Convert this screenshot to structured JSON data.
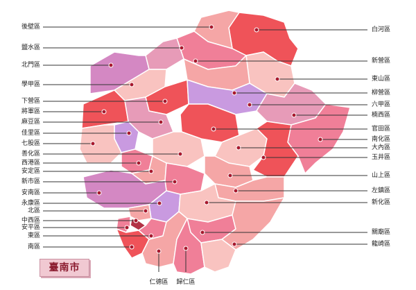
{
  "title": "臺南市",
  "colors": {
    "pale": "#f9c3c0",
    "light": "#f5a6a6",
    "pink": "#f07f98",
    "red": "#ef5359",
    "purple": "#c99ae0",
    "lavender": "#d488c3",
    "mauve": "#e79bb8",
    "dark": "#b23245"
  },
  "districts_left": [
    "後壁區",
    "鹽水區",
    "北門區",
    "學甲區",
    "下營區",
    "將軍區",
    "麻豆區",
    "佳里區",
    "七股區",
    "善化區",
    "西港區",
    "安定區",
    "新市區",
    "安南區",
    "永康區",
    "北區",
    "中西區",
    "安平區",
    "東區",
    "南區"
  ],
  "districts_right": [
    "白河區",
    "新營區",
    "東山區",
    "柳營區",
    "六甲區",
    "楠西區",
    "官田區",
    "南化區",
    "大內區",
    "玉井區",
    "山上區",
    "左鎮區",
    "新化區",
    "關廟區",
    "龍崎區"
  ],
  "districts_bottom": [
    "仁德區",
    "歸仁區"
  ]
}
